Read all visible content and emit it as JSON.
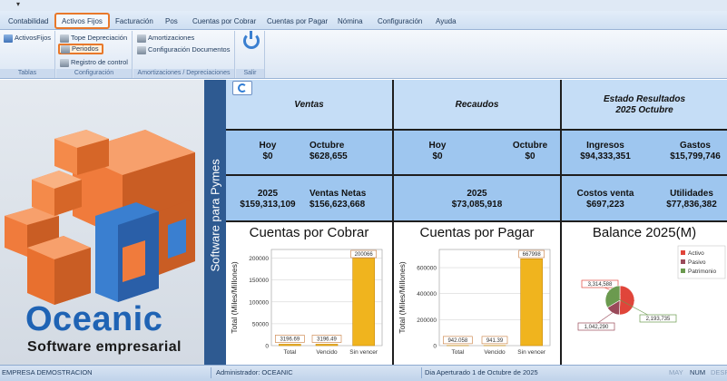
{
  "menu": {
    "tabs": [
      "Contabilidad",
      "Activos Fijos",
      "Facturación",
      "Pos",
      "Cuentas por Cobrar",
      "Cuentas por Pagar",
      "Nómina",
      "Configuración",
      "Ayuda"
    ],
    "active_tab": "Activos Fijos"
  },
  "ribbon": {
    "groups": {
      "tablas": {
        "label": "Tablas",
        "items": [
          "ActivosFijos"
        ]
      },
      "configuracion": {
        "label": "Configuración",
        "items": [
          "Tope Depreciación",
          "Periodos",
          "Registro de control"
        ]
      },
      "amortizaciones": {
        "label": "Amortizaciones / Depreciaciones",
        "items": [
          "Amortizaciones",
          "Configuración Documentos"
        ]
      },
      "salir": {
        "label": "Salir"
      }
    },
    "highlighted_item": "Periodos"
  },
  "brand": {
    "name": "Oceanic",
    "tagline": "Software empresarial",
    "side_text": "Software para Pymes"
  },
  "dashboard": {
    "ventas": {
      "header": "Ventas",
      "hoy_label": "Hoy",
      "hoy_value": "$0",
      "mes_label": "Octubre",
      "mes_value": "$628,655",
      "year_label": "2025",
      "year_value": "$159,313,109",
      "netas_label": "Ventas Netas",
      "netas_value": "$156,623,668"
    },
    "recaudos": {
      "header": "Recaudos",
      "hoy_label": "Hoy",
      "hoy_value": "$0",
      "mes_label": "Octubre",
      "mes_value": "$0",
      "year_label": "2025",
      "year_value": "$73,085,918"
    },
    "estado": {
      "header_1": "Estado Resultados",
      "header_2": "2025 Octubre",
      "ingresos_label": "Ingresos",
      "ingresos_value": "$94,333,351",
      "gastos_label": "Gastos",
      "gastos_value": "$15,799,746",
      "costos_label": "Costos venta",
      "costos_value": "$697,223",
      "utilidades_label": "Utilidades",
      "utilidades_value": "$77,836,382"
    }
  },
  "chart_data": [
    {
      "type": "bar",
      "title": "Cuentas por Cobrar",
      "categories": [
        "Total",
        "Vencido",
        "Sin vencer"
      ],
      "values": [
        3196.69,
        3196.49,
        200066
      ],
      "data_labels": [
        "3196.69",
        "3196.49",
        "200066"
      ],
      "ylabel": "Total (Miles/Millones)",
      "ylim": [
        0,
        220000
      ],
      "yticks": [
        0,
        50000,
        100000,
        150000,
        200000
      ],
      "grid": true,
      "bar_color": "#f0b41e"
    },
    {
      "type": "bar",
      "title": "Cuentas por Pagar",
      "categories": [
        "Total",
        "Vencido",
        "Sin vencer"
      ],
      "values": [
        942.058,
        941.39,
        667998
      ],
      "data_labels": [
        "942.058",
        "941.39",
        "667998"
      ],
      "ylabel": "Total (Miles/Millones)",
      "ylim": [
        0,
        740000
      ],
      "yticks": [
        0,
        200000,
        400000,
        600000
      ],
      "grid": true,
      "bar_color": "#f0b41e"
    },
    {
      "type": "pie",
      "title": "Balance 2025(M)",
      "labels": [
        "Activo",
        "Pasivo",
        "Patrimonio"
      ],
      "values": [
        3314.588,
        1042.29,
        2193.735
      ],
      "data_labels": [
        "3,314,588",
        "1,042,290",
        "2,193,735"
      ],
      "colors": [
        "#e0453a",
        "#9a4a5a",
        "#6b9a4f"
      ],
      "legend": "top-right"
    }
  ],
  "status": {
    "empresa": "EMPRESA DEMOSTRACION",
    "usuario": "Administrador: OCEANIC",
    "periodo": "Dia Aperturado 1 de Octubre de 2025",
    "may": "MAY",
    "num": "NUM",
    "desp": "DESP"
  },
  "colors": {
    "accent_orange": "#e8782a",
    "cell_blue": "#9ec6ef",
    "cell_light": "#c5ddf6",
    "brand_blue": "#1f63b4",
    "cube_orange": "#f07b3c"
  }
}
